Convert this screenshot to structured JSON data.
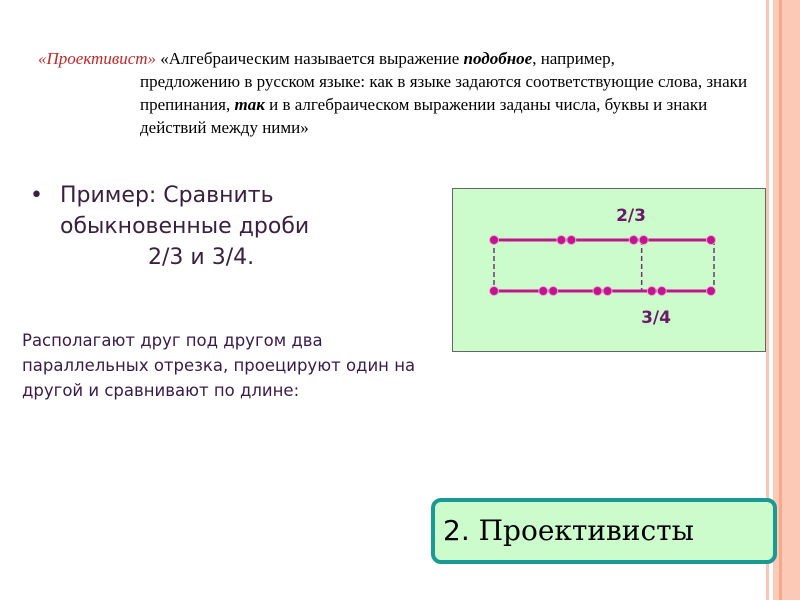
{
  "quote": {
    "lead": "«Проективист»",
    "line1": " «Алгебраическим называется выражение ",
    "em1": "подобное",
    "line1b": ", например,",
    "rest_a": "предложению в русском языке: как в языке задаются соответствующие слова, знаки препинания, ",
    "em2": "так",
    "rest_b": " и в алгебраическом выражении заданы числа, буквы и знаки действий между ними»"
  },
  "example": {
    "bullet": "•",
    "text": "Пример: Сравнить обыкновенные дроби",
    "fractions": "2/3  и 3/4."
  },
  "description": "Располагают друг под другом два параллельных отрезка, проецируют один на другой и сравнивают по длине:",
  "diagram": {
    "top_label": "2/3",
    "bottom_label": "3/4",
    "top_segment_parts": 3,
    "bottom_segment_parts": 4,
    "line_color": "#c0168c",
    "label_color": "#6a1a6a",
    "background": "#ccfccc"
  },
  "slide_title": {
    "number": "2. ",
    "text": "Проективисты"
  }
}
